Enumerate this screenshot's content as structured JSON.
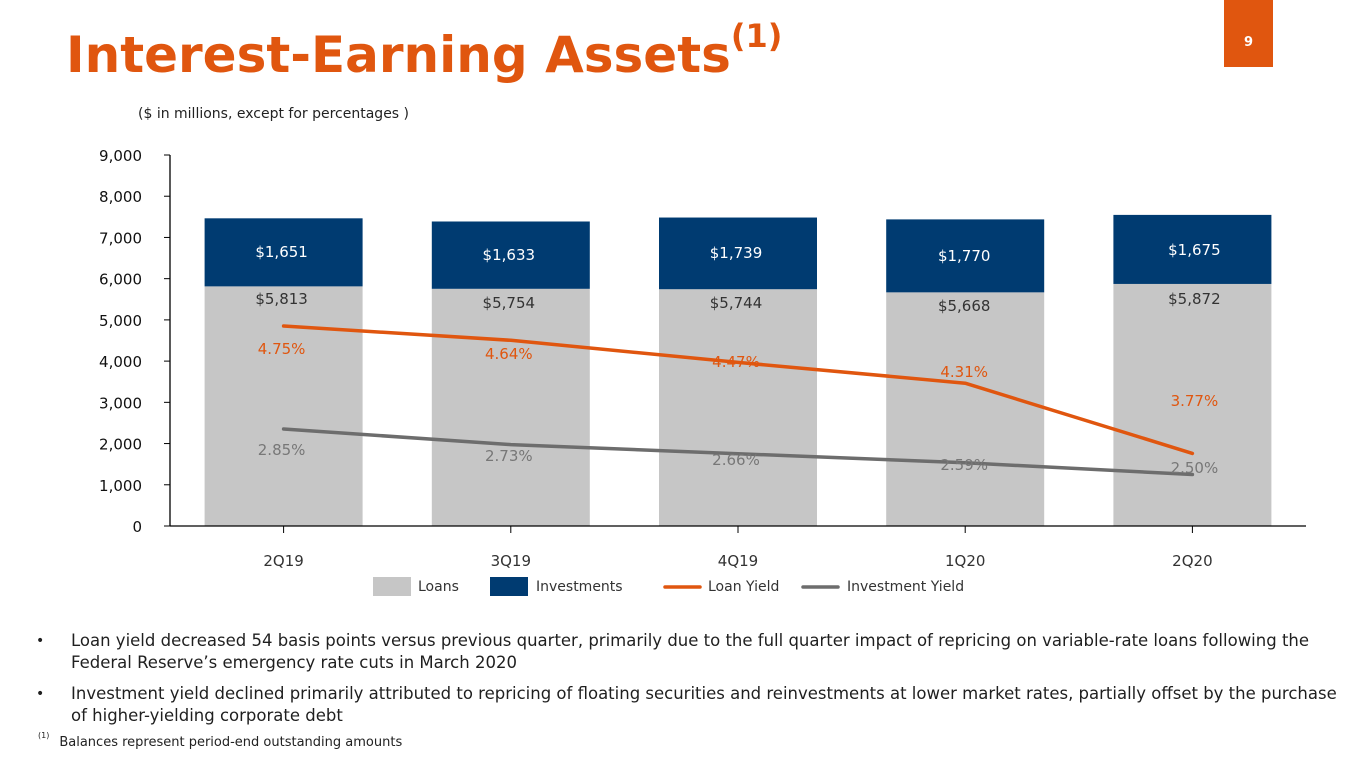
{
  "slide": {
    "title": "Interest-Earning Assets",
    "title_superscript": "(1)",
    "page_number": "9",
    "subtitle": "($ in millions, except for percentages )",
    "bullets": [
      "Loan yield decreased 54 basis points versus previous quarter, primarily due to the full quarter impact of repricing on variable-rate loans following the Federal Reserve’s emergency rate cuts in March 2020",
      "Investment yield declined primarily attributed to repricing of floating securities and reinvestments at lower market rates, partially offset by the purchase of higher-yielding corporate debt"
    ],
    "footnote_marker": "(1)",
    "footnote": "Balances represent period-end outstanding amounts",
    "colors": {
      "accent": "#e0560f",
      "loans": "#c6c6c6",
      "investments": "#003b71",
      "loan_yield": "#e0560f",
      "investment_yield": "#6d6d6d"
    }
  },
  "chart_data": {
    "type": "bar",
    "stacked": true,
    "categories": [
      "2Q19",
      "3Q19",
      "4Q19",
      "1Q20",
      "2Q20"
    ],
    "ylim": [
      0,
      9000
    ],
    "yticks": [
      0,
      1000,
      2000,
      3000,
      4000,
      5000,
      6000,
      7000,
      8000,
      9000
    ],
    "ytick_labels": [
      "0",
      "1,000",
      "2,000",
      "3,000",
      "4,000",
      "5,000",
      "6,000",
      "7,000",
      "8,000",
      "9,000"
    ],
    "series": [
      {
        "name": "Loans",
        "values": [
          5813,
          5754,
          5744,
          5668,
          5872
        ],
        "labels": [
          "$5,813",
          "$5,754",
          "$5,744",
          "$5,668",
          "$5,872"
        ]
      },
      {
        "name": "Investments",
        "values": [
          1651,
          1633,
          1739,
          1770,
          1675
        ],
        "labels": [
          "$1,651",
          "$1,633",
          "$1,739",
          "$1,770",
          "$1,675"
        ]
      }
    ],
    "lines": [
      {
        "name": "Loan Yield",
        "values": [
          4.75,
          4.64,
          4.47,
          4.31,
          3.77
        ],
        "labels": [
          "4.75%",
          "4.64%",
          "4.47%",
          "4.31%",
          "3.77%"
        ]
      },
      {
        "name": "Investment Yield",
        "values": [
          2.85,
          2.73,
          2.66,
          2.59,
          2.5
        ],
        "labels": [
          "2.85%",
          "2.73%",
          "2.66%",
          "2.59%",
          "2.50%"
        ]
      }
    ],
    "legend": [
      "Loans",
      "Investments",
      "Loan Yield",
      "Investment Yield"
    ],
    "legend_position": "bottom"
  }
}
